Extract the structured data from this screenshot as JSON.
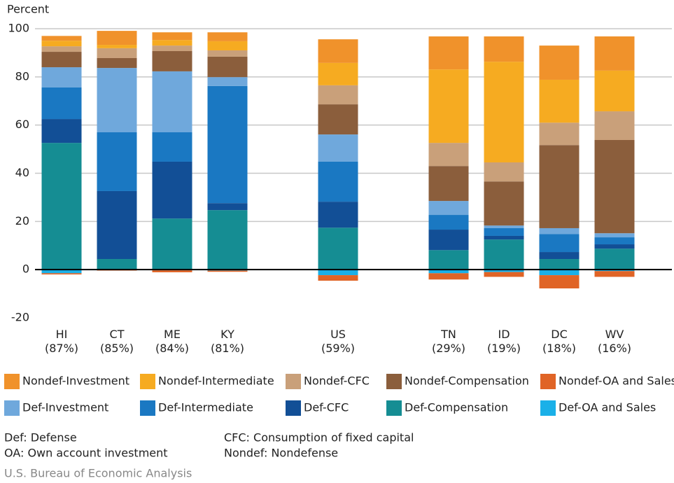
{
  "chart_data": {
    "type": "stacked_bar",
    "y_label": "Percent",
    "categories": [
      "HI\n(87%)",
      "CT\n(85%)",
      "ME\n(84%)",
      "KY\n(81%)",
      "US\n(59%)",
      "TN\n(29%)",
      "ID\n(19%)",
      "DC\n(18%)",
      "WV\n(16%)"
    ],
    "series": [
      {
        "name": "Nondef-Investment",
        "color": "#f0922b",
        "values": [
          2,
          5.8,
          3.2,
          3.7,
          9.8,
          13.7,
          10.5,
          14.2,
          14.2
        ]
      },
      {
        "name": "Nondef-Intermediate",
        "color": "#f6ab21",
        "values": [
          2.3,
          1.4,
          2.3,
          3.8,
          9.3,
          30.5,
          41.8,
          17.8,
          16.9
        ]
      },
      {
        "name": "Nondef-CFC",
        "color": "#c9a07a",
        "values": [
          2.3,
          4.1,
          2.3,
          2.6,
          7.9,
          9.6,
          7.9,
          9.3,
          11.9
        ]
      },
      {
        "name": "Nondef-Compensation",
        "color": "#8b5e3c",
        "values": [
          6.4,
          4.1,
          8.4,
          8.5,
          12.5,
          14.5,
          18.3,
          34.5,
          38.7
        ]
      },
      {
        "name": "Nondef-OA and Sales",
        "color": "#e06426",
        "values": [
          -0.5,
          -0.2,
          -0.8,
          -0.5,
          -2.3,
          -2.6,
          -2,
          -5.5,
          -2.4
        ]
      },
      {
        "name": "Def-Investment",
        "color": "#6fa8dc",
        "values": [
          8.4,
          26.7,
          25.3,
          3.7,
          11.3,
          5.8,
          1.1,
          2.4,
          1.7
        ]
      },
      {
        "name": "Def-Intermediate",
        "color": "#1a78c2",
        "values": [
          13.1,
          24.4,
          12.2,
          48.6,
          16.6,
          6.1,
          3.2,
          7.5,
          2.9
        ]
      },
      {
        "name": "Def-CFC",
        "color": "#124f96",
        "values": [
          9.9,
          28.2,
          23.6,
          2.9,
          10.8,
          8.5,
          1.5,
          2.9,
          1.8
        ]
      },
      {
        "name": "Def-Compensation",
        "color": "#158d93",
        "values": [
          52.6,
          4.4,
          21.2,
          24.7,
          17.4,
          8.1,
          12.5,
          4.4,
          8.7
        ]
      },
      {
        "name": "Def-OA and Sales",
        "color": "#1ab0e8",
        "values": [
          -1.5,
          -0.2,
          -0.3,
          -0.4,
          -2.3,
          -1.5,
          -1,
          -2.3,
          -0.6
        ]
      }
    ],
    "ylim": [
      -20,
      100
    ],
    "yticks": [
      -20,
      0,
      20,
      40,
      60,
      80,
      100
    ],
    "grid": true,
    "notes": [
      "Def: Defense",
      "OA: Own account investment",
      "CFC: Consumption of fixed capital",
      "Nondef: Nondefense"
    ],
    "source": "U.S. Bureau of Economic Analysis"
  }
}
